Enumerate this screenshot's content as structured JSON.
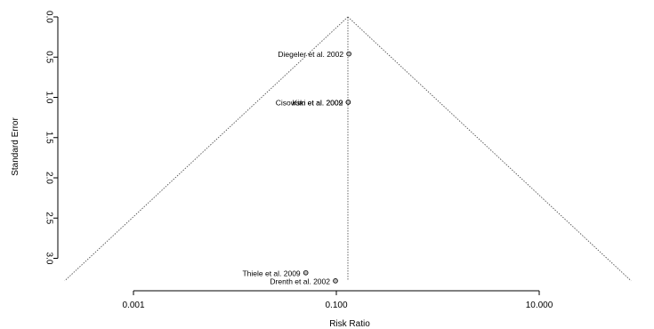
{
  "chart_data": {
    "type": "scatter",
    "subtype": "funnel-plot",
    "title": "",
    "xlabel": "Risk Ratio",
    "ylabel": "Standard Error",
    "x_scale": "log10",
    "xlim": [
      0.0005,
      40
    ],
    "ylim": [
      0,
      3.3
    ],
    "y_reversed": true,
    "x_ticks": [
      0.001,
      0.1,
      10
    ],
    "x_tick_labels": [
      "0.001",
      "0.100",
      "10.000"
    ],
    "y_ticks": [
      0,
      0.5,
      1,
      1.5,
      2,
      2.5,
      3
    ],
    "y_tick_labels": [
      "0.0",
      "0.5",
      "1.0",
      "1.5",
      "2.0",
      "2.5",
      "3.0"
    ],
    "pooled_estimate": 0.13,
    "funnel_multiplier": 1.96,
    "grid": false,
    "points": [
      {
        "label": "Diegeler et al. 2002",
        "x": 0.133,
        "y": 0.46
      },
      {
        "label": "Kim et al. 2009",
        "x": 0.131,
        "y": 1.06
      },
      {
        "label": "Cisowski et al. 2002",
        "x": 0.131,
        "y": 1.06
      },
      {
        "label": "Thiele et al. 2009",
        "x": 0.05,
        "y": 3.18
      },
      {
        "label": "Drenth et al. 2002",
        "x": 0.098,
        "y": 3.28
      }
    ]
  }
}
